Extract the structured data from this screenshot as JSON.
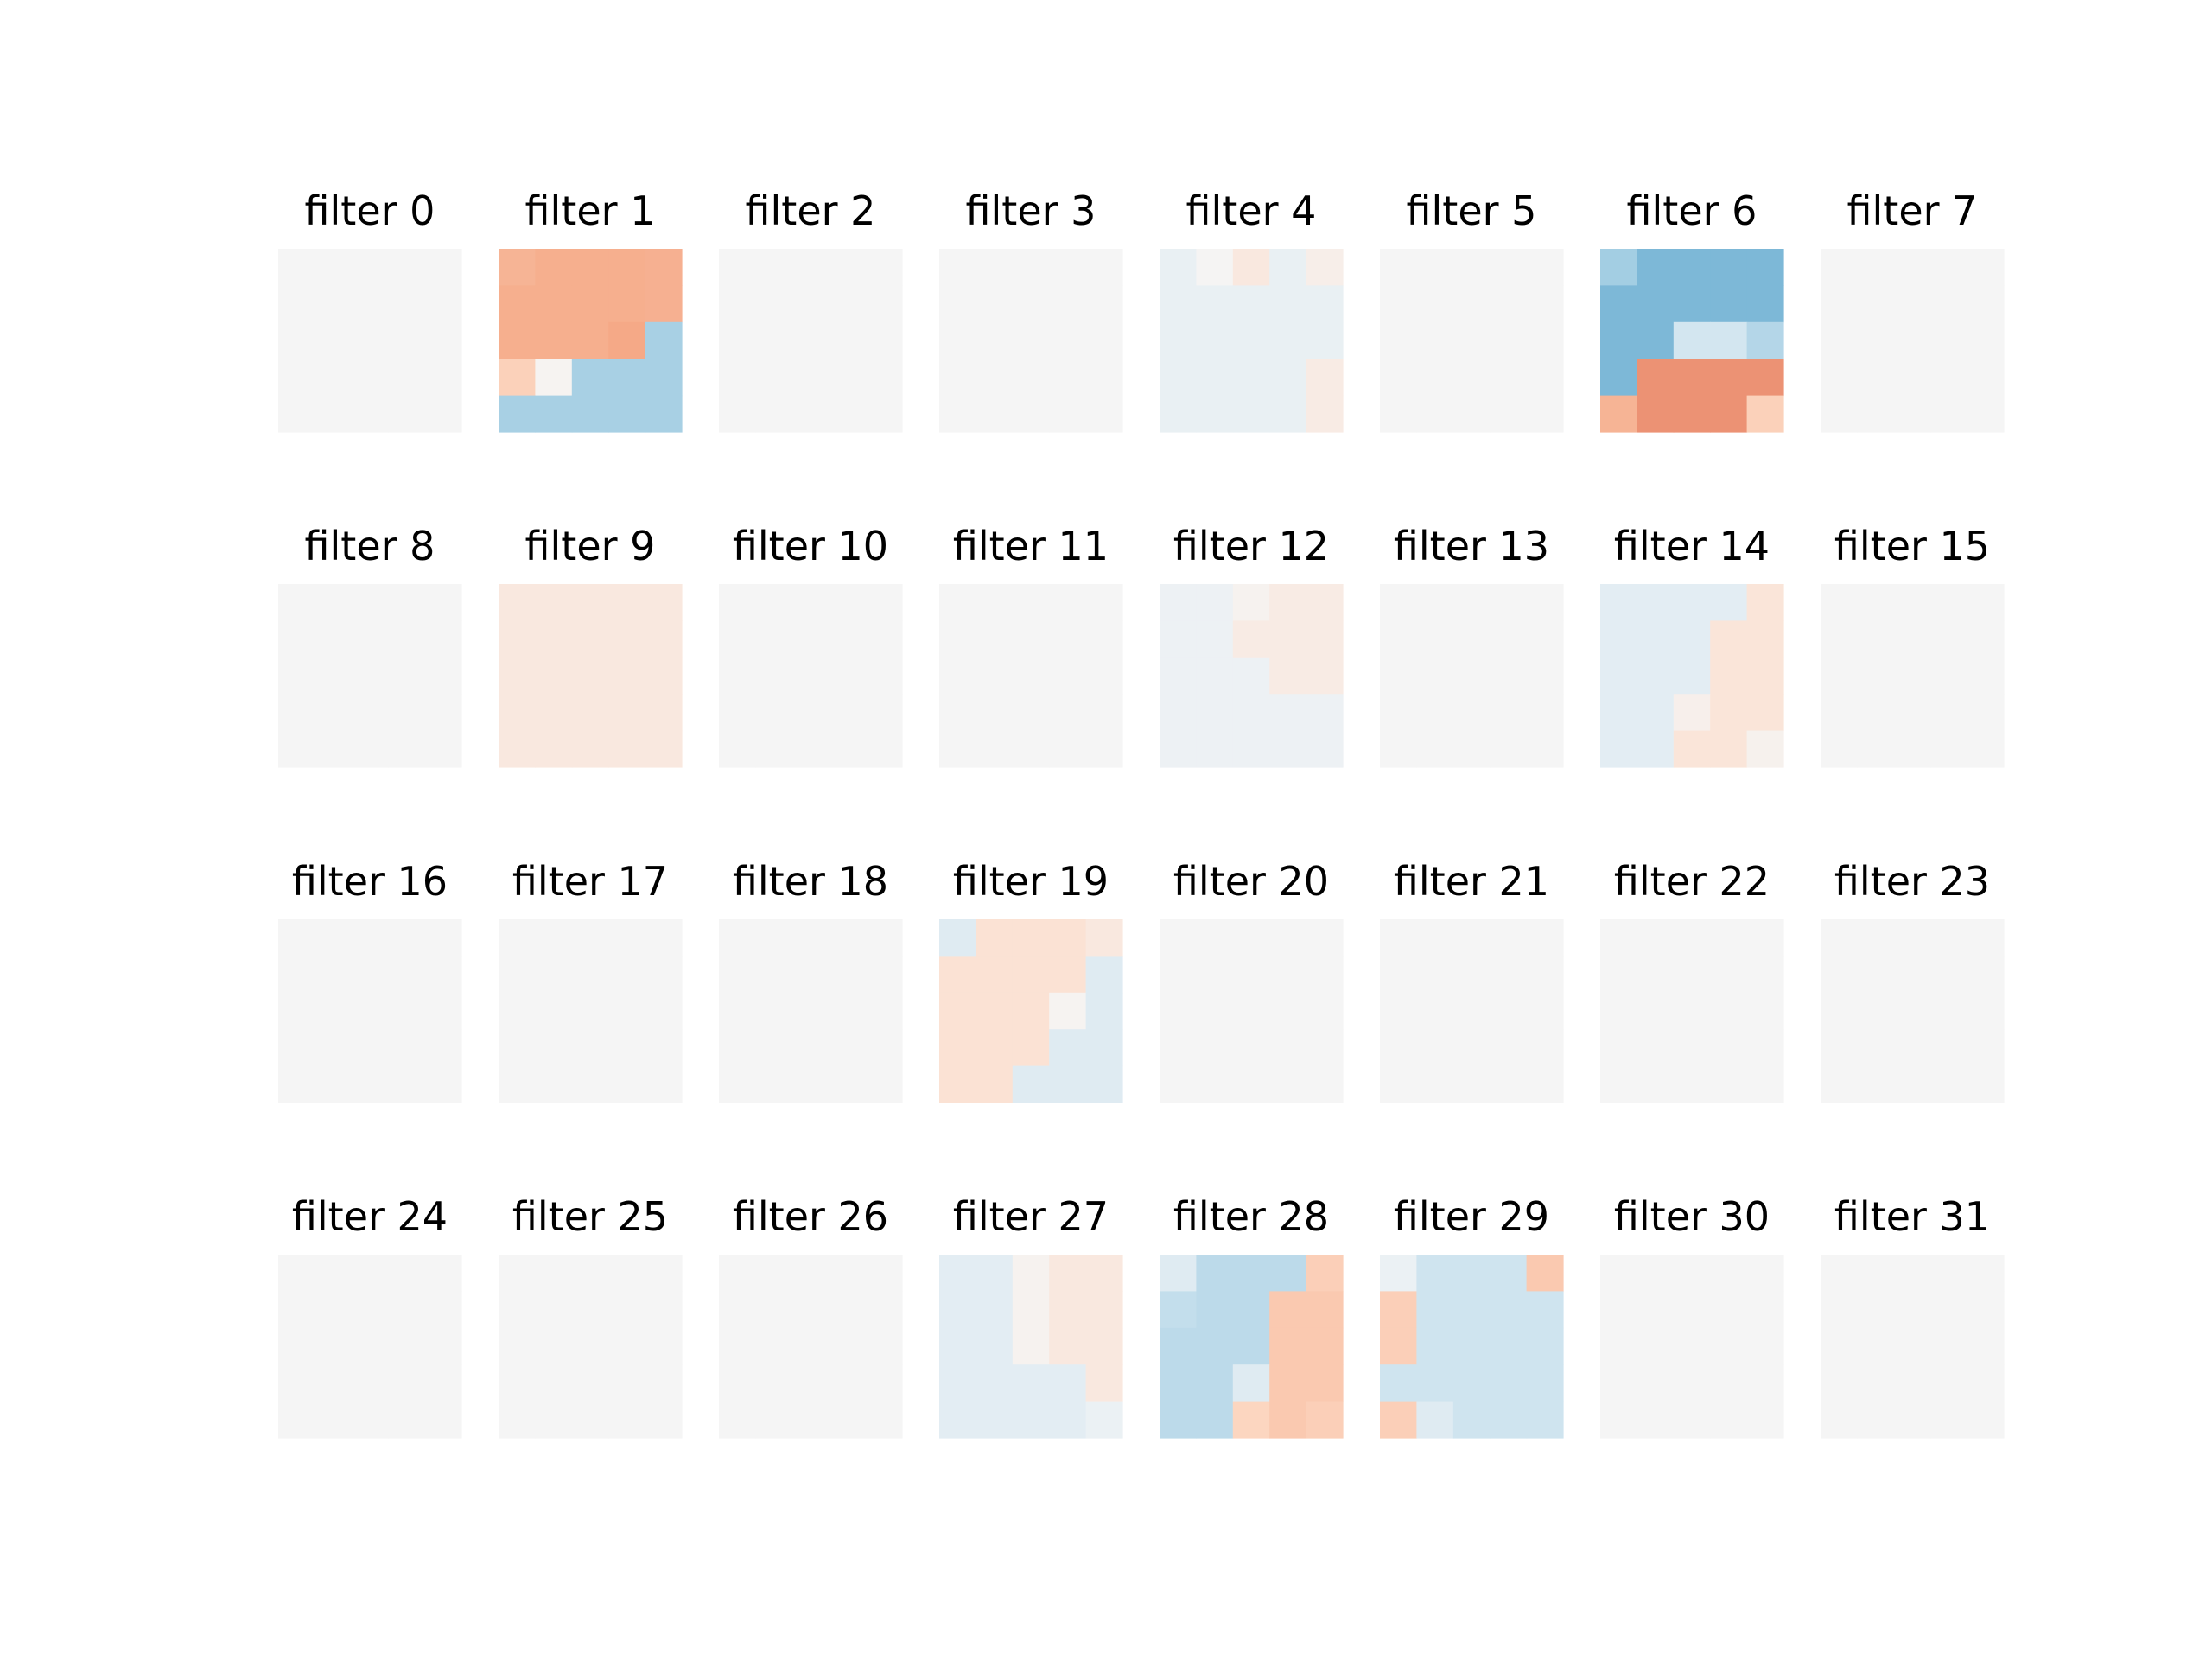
{
  "chart_data": {
    "type": "heatmap",
    "grid": false,
    "colormap": "diverging blue-white-red",
    "colors": {
      "neutral": "#f5f5f5",
      "light_blue": "#e8eef2",
      "blue": "#9ecae1",
      "dark_blue": "#5fa4cc",
      "light_red": "#f8e9e1",
      "salmon": "#f4ab8a",
      "red": "#e07a60",
      "peach": "#f9c8ae"
    },
    "panel_rows": 4,
    "panel_cols": 8,
    "panels": [
      {
        "title": "filter 0",
        "cells": [
          [
            0,
            0,
            0,
            0,
            0
          ],
          [
            0,
            0,
            0,
            0,
            0
          ],
          [
            0,
            0,
            0,
            0,
            0
          ],
          [
            0,
            0,
            0,
            0,
            0
          ],
          [
            0,
            0,
            0,
            0,
            0
          ]
        ]
      },
      {
        "title": "filter 1",
        "cells": [
          [
            0.42,
            0.45,
            0.45,
            0.45,
            0.44
          ],
          [
            0.45,
            0.45,
            0.45,
            0.45,
            0.44
          ],
          [
            0.45,
            0.45,
            0.45,
            0.48,
            -0.4
          ],
          [
            0.25,
            0.02,
            -0.4,
            -0.4,
            -0.4
          ],
          [
            -0.4,
            -0.4,
            -0.4,
            -0.4,
            -0.4
          ]
        ]
      },
      {
        "title": "filter 2",
        "cells": [
          [
            0,
            0,
            0,
            0,
            0
          ],
          [
            0,
            0,
            0,
            0,
            0
          ],
          [
            0,
            0,
            0,
            0,
            0
          ],
          [
            0,
            0,
            0,
            0,
            0
          ],
          [
            0,
            0,
            0,
            0,
            0
          ]
        ]
      },
      {
        "title": "filter 3",
        "cells": [
          [
            0,
            0,
            0,
            0,
            0
          ],
          [
            0,
            0,
            0,
            0,
            0
          ],
          [
            0,
            0,
            0,
            0,
            0
          ],
          [
            0,
            0,
            0,
            0,
            0
          ],
          [
            0,
            0,
            0,
            0,
            0
          ]
        ]
      },
      {
        "title": "filter 4",
        "cells": [
          [
            -0.07,
            0.01,
            0.1,
            -0.07,
            0.06
          ],
          [
            -0.07,
            -0.07,
            -0.07,
            -0.07,
            -0.07
          ],
          [
            -0.07,
            -0.07,
            -0.07,
            -0.07,
            -0.07
          ],
          [
            -0.07,
            -0.07,
            -0.07,
            -0.07,
            0.08
          ],
          [
            -0.07,
            -0.07,
            -0.07,
            -0.07,
            0.08
          ]
        ]
      },
      {
        "title": "filter 5",
        "cells": [
          [
            0,
            0,
            0,
            0,
            0
          ],
          [
            0,
            0,
            0,
            0,
            0
          ],
          [
            0,
            0,
            0,
            0,
            0
          ],
          [
            0,
            0,
            0,
            0,
            0
          ],
          [
            0,
            0,
            0,
            0,
            0
          ]
        ]
      },
      {
        "title": "filter 6",
        "cells": [
          [
            -0.42,
            -0.62,
            -0.62,
            -0.62,
            -0.62
          ],
          [
            -0.62,
            -0.62,
            -0.62,
            -0.62,
            -0.62
          ],
          [
            -0.62,
            -0.62,
            -0.18,
            -0.18,
            -0.34
          ],
          [
            -0.62,
            0.62,
            0.62,
            0.62,
            0.62
          ],
          [
            0.42,
            0.62,
            0.62,
            0.62,
            0.25
          ]
        ]
      },
      {
        "title": "filter 7",
        "cells": [
          [
            0,
            0,
            0,
            0,
            0
          ],
          [
            0,
            0,
            0,
            0,
            0
          ],
          [
            0,
            0,
            0,
            0,
            0
          ],
          [
            0,
            0,
            0,
            0,
            0
          ],
          [
            0,
            0,
            0,
            0,
            0
          ]
        ]
      },
      {
        "title": "filter 8",
        "cells": [
          [
            0,
            0,
            0,
            0,
            0
          ],
          [
            0,
            0,
            0,
            0,
            0
          ],
          [
            0,
            0,
            0,
            0,
            0
          ],
          [
            0,
            0,
            0,
            0,
            0
          ],
          [
            0,
            0,
            0,
            0,
            0
          ]
        ]
      },
      {
        "title": "filter 9",
        "cells": [
          [
            0.1,
            0.1,
            0.1,
            0.1,
            0.1
          ],
          [
            0.1,
            0.1,
            0.1,
            0.1,
            0.1
          ],
          [
            0.1,
            0.1,
            0.1,
            0.1,
            0.1
          ],
          [
            0.1,
            0.1,
            0.1,
            0.1,
            0.1
          ],
          [
            0.1,
            0.1,
            0.1,
            0.1,
            0.1
          ]
        ]
      },
      {
        "title": "filter 10",
        "cells": [
          [
            0,
            0,
            0,
            0,
            0
          ],
          [
            0,
            0,
            0,
            0,
            0
          ],
          [
            0,
            0,
            0,
            0,
            0
          ],
          [
            0,
            0,
            0,
            0,
            0
          ],
          [
            0,
            0,
            0,
            0,
            0
          ]
        ]
      },
      {
        "title": "filter 11",
        "cells": [
          [
            0,
            0,
            0,
            0,
            0
          ],
          [
            0,
            0,
            0,
            0,
            0
          ],
          [
            0,
            0,
            0,
            0,
            0
          ],
          [
            0,
            0,
            0,
            0,
            0
          ],
          [
            0,
            0,
            0,
            0,
            0
          ]
        ]
      },
      {
        "title": "filter 12",
        "cells": [
          [
            -0.05,
            -0.05,
            0.03,
            0.08,
            0.08
          ],
          [
            -0.05,
            -0.05,
            0.08,
            0.08,
            0.08
          ],
          [
            -0.05,
            -0.05,
            -0.05,
            0.08,
            0.08
          ],
          [
            -0.05,
            -0.05,
            -0.05,
            -0.05,
            -0.05
          ],
          [
            -0.05,
            -0.05,
            -0.05,
            -0.05,
            -0.05
          ]
        ]
      },
      {
        "title": "filter 13",
        "cells": [
          [
            0,
            0,
            0,
            0,
            0
          ],
          [
            0,
            0,
            0,
            0,
            0
          ],
          [
            0,
            0,
            0,
            0,
            0
          ],
          [
            0,
            0,
            0,
            0,
            0
          ],
          [
            0,
            0,
            0,
            0,
            0
          ]
        ]
      },
      {
        "title": "filter 14",
        "cells": [
          [
            -0.1,
            -0.1,
            -0.1,
            -0.1,
            0.12
          ],
          [
            -0.1,
            -0.1,
            -0.1,
            0.12,
            0.12
          ],
          [
            -0.1,
            -0.1,
            -0.1,
            0.12,
            0.12
          ],
          [
            -0.1,
            -0.1,
            0.05,
            0.12,
            0.12
          ],
          [
            -0.1,
            -0.1,
            0.12,
            0.12,
            0.04
          ]
        ]
      },
      {
        "title": "filter 15",
        "cells": [
          [
            0,
            0,
            0,
            0,
            0
          ],
          [
            0,
            0,
            0,
            0,
            0
          ],
          [
            0,
            0,
            0,
            0,
            0
          ],
          [
            0,
            0,
            0,
            0,
            0
          ],
          [
            0,
            0,
            0,
            0,
            0
          ]
        ]
      },
      {
        "title": "filter 16",
        "cells": [
          [
            0,
            0,
            0,
            0,
            0
          ],
          [
            0,
            0,
            0,
            0,
            0
          ],
          [
            0,
            0,
            0,
            0,
            0
          ],
          [
            0,
            0,
            0,
            0,
            0
          ],
          [
            0,
            0,
            0,
            0,
            0
          ]
        ]
      },
      {
        "title": "filter 17",
        "cells": [
          [
            0,
            0,
            0,
            0,
            0
          ],
          [
            0,
            0,
            0,
            0,
            0
          ],
          [
            0,
            0,
            0,
            0,
            0
          ],
          [
            0,
            0,
            0,
            0,
            0
          ],
          [
            0,
            0,
            0,
            0,
            0
          ]
        ]
      },
      {
        "title": "filter 18",
        "cells": [
          [
            0,
            0,
            0,
            0,
            0
          ],
          [
            0,
            0,
            0,
            0,
            0
          ],
          [
            0,
            0,
            0,
            0,
            0
          ],
          [
            0,
            0,
            0,
            0,
            0
          ],
          [
            0,
            0,
            0,
            0,
            0
          ]
        ]
      },
      {
        "title": "filter 19",
        "cells": [
          [
            -0.12,
            0.14,
            0.14,
            0.14,
            0.1
          ],
          [
            0.14,
            0.14,
            0.14,
            0.14,
            -0.12
          ],
          [
            0.14,
            0.14,
            0.14,
            0.02,
            -0.12
          ],
          [
            0.14,
            0.14,
            0.14,
            -0.12,
            -0.12
          ],
          [
            0.14,
            0.14,
            -0.12,
            -0.12,
            -0.12
          ]
        ]
      },
      {
        "title": "filter 20",
        "cells": [
          [
            0,
            0,
            0,
            0,
            0
          ],
          [
            0,
            0,
            0,
            0,
            0
          ],
          [
            0,
            0,
            0,
            0,
            0
          ],
          [
            0,
            0,
            0,
            0,
            0
          ],
          [
            0,
            0,
            0,
            0,
            0
          ]
        ]
      },
      {
        "title": "filter 21",
        "cells": [
          [
            0,
            0,
            0,
            0,
            0
          ],
          [
            0,
            0,
            0,
            0,
            0
          ],
          [
            0,
            0,
            0,
            0,
            0
          ],
          [
            0,
            0,
            0,
            0,
            0
          ],
          [
            0,
            0,
            0,
            0,
            0
          ]
        ]
      },
      {
        "title": "filter 22",
        "cells": [
          [
            0,
            0,
            0,
            0,
            0
          ],
          [
            0,
            0,
            0,
            0,
            0
          ],
          [
            0,
            0,
            0,
            0,
            0
          ],
          [
            0,
            0,
            0,
            0,
            0
          ],
          [
            0,
            0,
            0,
            0,
            0
          ]
        ]
      },
      {
        "title": "filter 23",
        "cells": [
          [
            0,
            0,
            0,
            0,
            0
          ],
          [
            0,
            0,
            0,
            0,
            0
          ],
          [
            0,
            0,
            0,
            0,
            0
          ],
          [
            0,
            0,
            0,
            0,
            0
          ],
          [
            0,
            0,
            0,
            0,
            0
          ]
        ]
      },
      {
        "title": "filter 24",
        "cells": [
          [
            0,
            0,
            0,
            0,
            0
          ],
          [
            0,
            0,
            0,
            0,
            0
          ],
          [
            0,
            0,
            0,
            0,
            0
          ],
          [
            0,
            0,
            0,
            0,
            0
          ],
          [
            0,
            0,
            0,
            0,
            0
          ]
        ]
      },
      {
        "title": "filter 25",
        "cells": [
          [
            0,
            0,
            0,
            0,
            0
          ],
          [
            0,
            0,
            0,
            0,
            0
          ],
          [
            0,
            0,
            0,
            0,
            0
          ],
          [
            0,
            0,
            0,
            0,
            0
          ],
          [
            0,
            0,
            0,
            0,
            0
          ]
        ]
      },
      {
        "title": "filter 26",
        "cells": [
          [
            0,
            0,
            0,
            0,
            0
          ],
          [
            0,
            0,
            0,
            0,
            0
          ],
          [
            0,
            0,
            0,
            0,
            0
          ],
          [
            0,
            0,
            0,
            0,
            0
          ],
          [
            0,
            0,
            0,
            0,
            0
          ]
        ]
      },
      {
        "title": "filter 27",
        "cells": [
          [
            -0.1,
            -0.1,
            0.03,
            0.1,
            0.1
          ],
          [
            -0.1,
            -0.1,
            0.03,
            0.1,
            0.1
          ],
          [
            -0.1,
            -0.1,
            0.03,
            0.1,
            0.1
          ],
          [
            -0.1,
            -0.1,
            -0.1,
            -0.1,
            0.1
          ],
          [
            -0.1,
            -0.1,
            -0.1,
            -0.1,
            -0.06
          ]
        ]
      },
      {
        "title": "filter 28",
        "cells": [
          [
            -0.12,
            -0.3,
            -0.3,
            -0.3,
            0.26
          ],
          [
            -0.26,
            -0.3,
            -0.3,
            0.3,
            0.3
          ],
          [
            -0.3,
            -0.3,
            -0.3,
            0.3,
            0.3
          ],
          [
            -0.3,
            -0.3,
            -0.12,
            0.3,
            0.3
          ],
          [
            -0.3,
            -0.3,
            0.22,
            0.3,
            0.26
          ]
        ]
      },
      {
        "title": "filter 29",
        "cells": [
          [
            -0.06,
            -0.2,
            -0.2,
            -0.2,
            0.3
          ],
          [
            0.26,
            -0.2,
            -0.2,
            -0.2,
            -0.2
          ],
          [
            0.26,
            -0.2,
            -0.2,
            -0.2,
            -0.2
          ],
          [
            -0.2,
            -0.2,
            -0.2,
            -0.2,
            -0.2
          ],
          [
            0.26,
            -0.12,
            -0.2,
            -0.2,
            -0.2
          ]
        ]
      },
      {
        "title": "filter 30",
        "cells": [
          [
            0,
            0,
            0,
            0,
            0
          ],
          [
            0,
            0,
            0,
            0,
            0
          ],
          [
            0,
            0,
            0,
            0,
            0
          ],
          [
            0,
            0,
            0,
            0,
            0
          ],
          [
            0,
            0,
            0,
            0,
            0
          ]
        ]
      },
      {
        "title": "filter 31",
        "cells": [
          [
            0,
            0,
            0,
            0,
            0
          ],
          [
            0,
            0,
            0,
            0,
            0
          ],
          [
            0,
            0,
            0,
            0,
            0
          ],
          [
            0,
            0,
            0,
            0,
            0
          ],
          [
            0,
            0,
            0,
            0,
            0
          ]
        ]
      }
    ]
  }
}
